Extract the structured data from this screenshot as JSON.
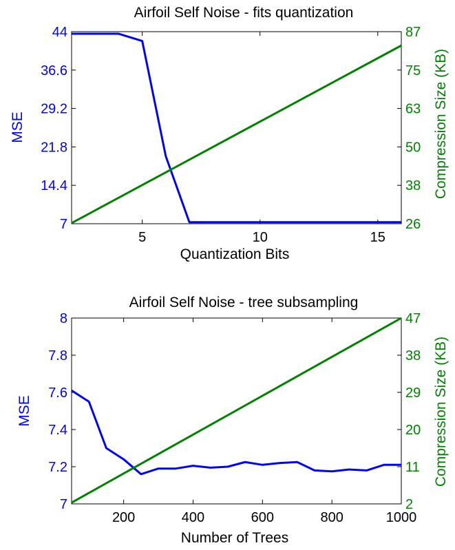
{
  "chart_data": [
    {
      "type": "line",
      "title": "Airfoil Self Noise - fits quantization",
      "xlabel": "Quantization Bits",
      "ylabel": "MSE",
      "ylabel_right": "Compression Size (KB)",
      "xlim": [
        2,
        16
      ],
      "ylim": [
        7,
        44
      ],
      "ylim_right": [
        26,
        87
      ],
      "xticks": [
        5,
        10,
        15
      ],
      "yticks": [
        "7",
        "14.4",
        "21.8",
        "29.2",
        "36.6",
        "44"
      ],
      "yticks_right": [
        "26",
        "38",
        "50",
        "63",
        "75",
        "87"
      ],
      "colors": {
        "left": "#0000ff",
        "right": "#008000"
      },
      "series": [
        {
          "axis": "left",
          "color": "#0000ff",
          "x": [
            2,
            3,
            4,
            5,
            6,
            7,
            8,
            9,
            10,
            11,
            12,
            13,
            14,
            15,
            16
          ],
          "values": [
            43.6,
            43.6,
            43.6,
            42.2,
            20.0,
            7.3,
            7.3,
            7.3,
            7.3,
            7.3,
            7.3,
            7.3,
            7.3,
            7.3,
            7.3
          ]
        },
        {
          "axis": "right",
          "color": "#008000",
          "x": [
            2,
            16
          ],
          "values": [
            26.2,
            82.6
          ]
        }
      ]
    },
    {
      "type": "line",
      "title": "Airfoil Self Noise - tree subsampling",
      "xlabel": "Number of Trees",
      "ylabel": "MSE",
      "ylabel_right": "Compression Size (KB)",
      "xlim": [
        50,
        1000
      ],
      "ylim": [
        7,
        8
      ],
      "ylim_right": [
        2,
        47
      ],
      "xticks": [
        200,
        400,
        600,
        800,
        1000
      ],
      "yticks": [
        "7",
        "7.2",
        "7.4",
        "7.6",
        "7.8",
        "8"
      ],
      "yticks_right": [
        "2",
        "11",
        "20",
        "29",
        "38",
        "47"
      ],
      "colors": {
        "left": "#0000ff",
        "right": "#008000"
      },
      "series": [
        {
          "axis": "left",
          "color": "#0000ff",
          "x": [
            50,
            100,
            150,
            200,
            250,
            300,
            350,
            400,
            450,
            500,
            550,
            600,
            650,
            700,
            750,
            800,
            850,
            900,
            950,
            1000
          ],
          "values": [
            7.61,
            7.55,
            7.3,
            7.24,
            7.16,
            7.19,
            7.19,
            7.205,
            7.195,
            7.2,
            7.225,
            7.21,
            7.22,
            7.225,
            7.18,
            7.175,
            7.185,
            7.18,
            7.21,
            7.21
          ]
        },
        {
          "axis": "right",
          "color": "#008000",
          "x": [
            50,
            1000
          ],
          "values": [
            2.3,
            47
          ]
        }
      ]
    }
  ]
}
